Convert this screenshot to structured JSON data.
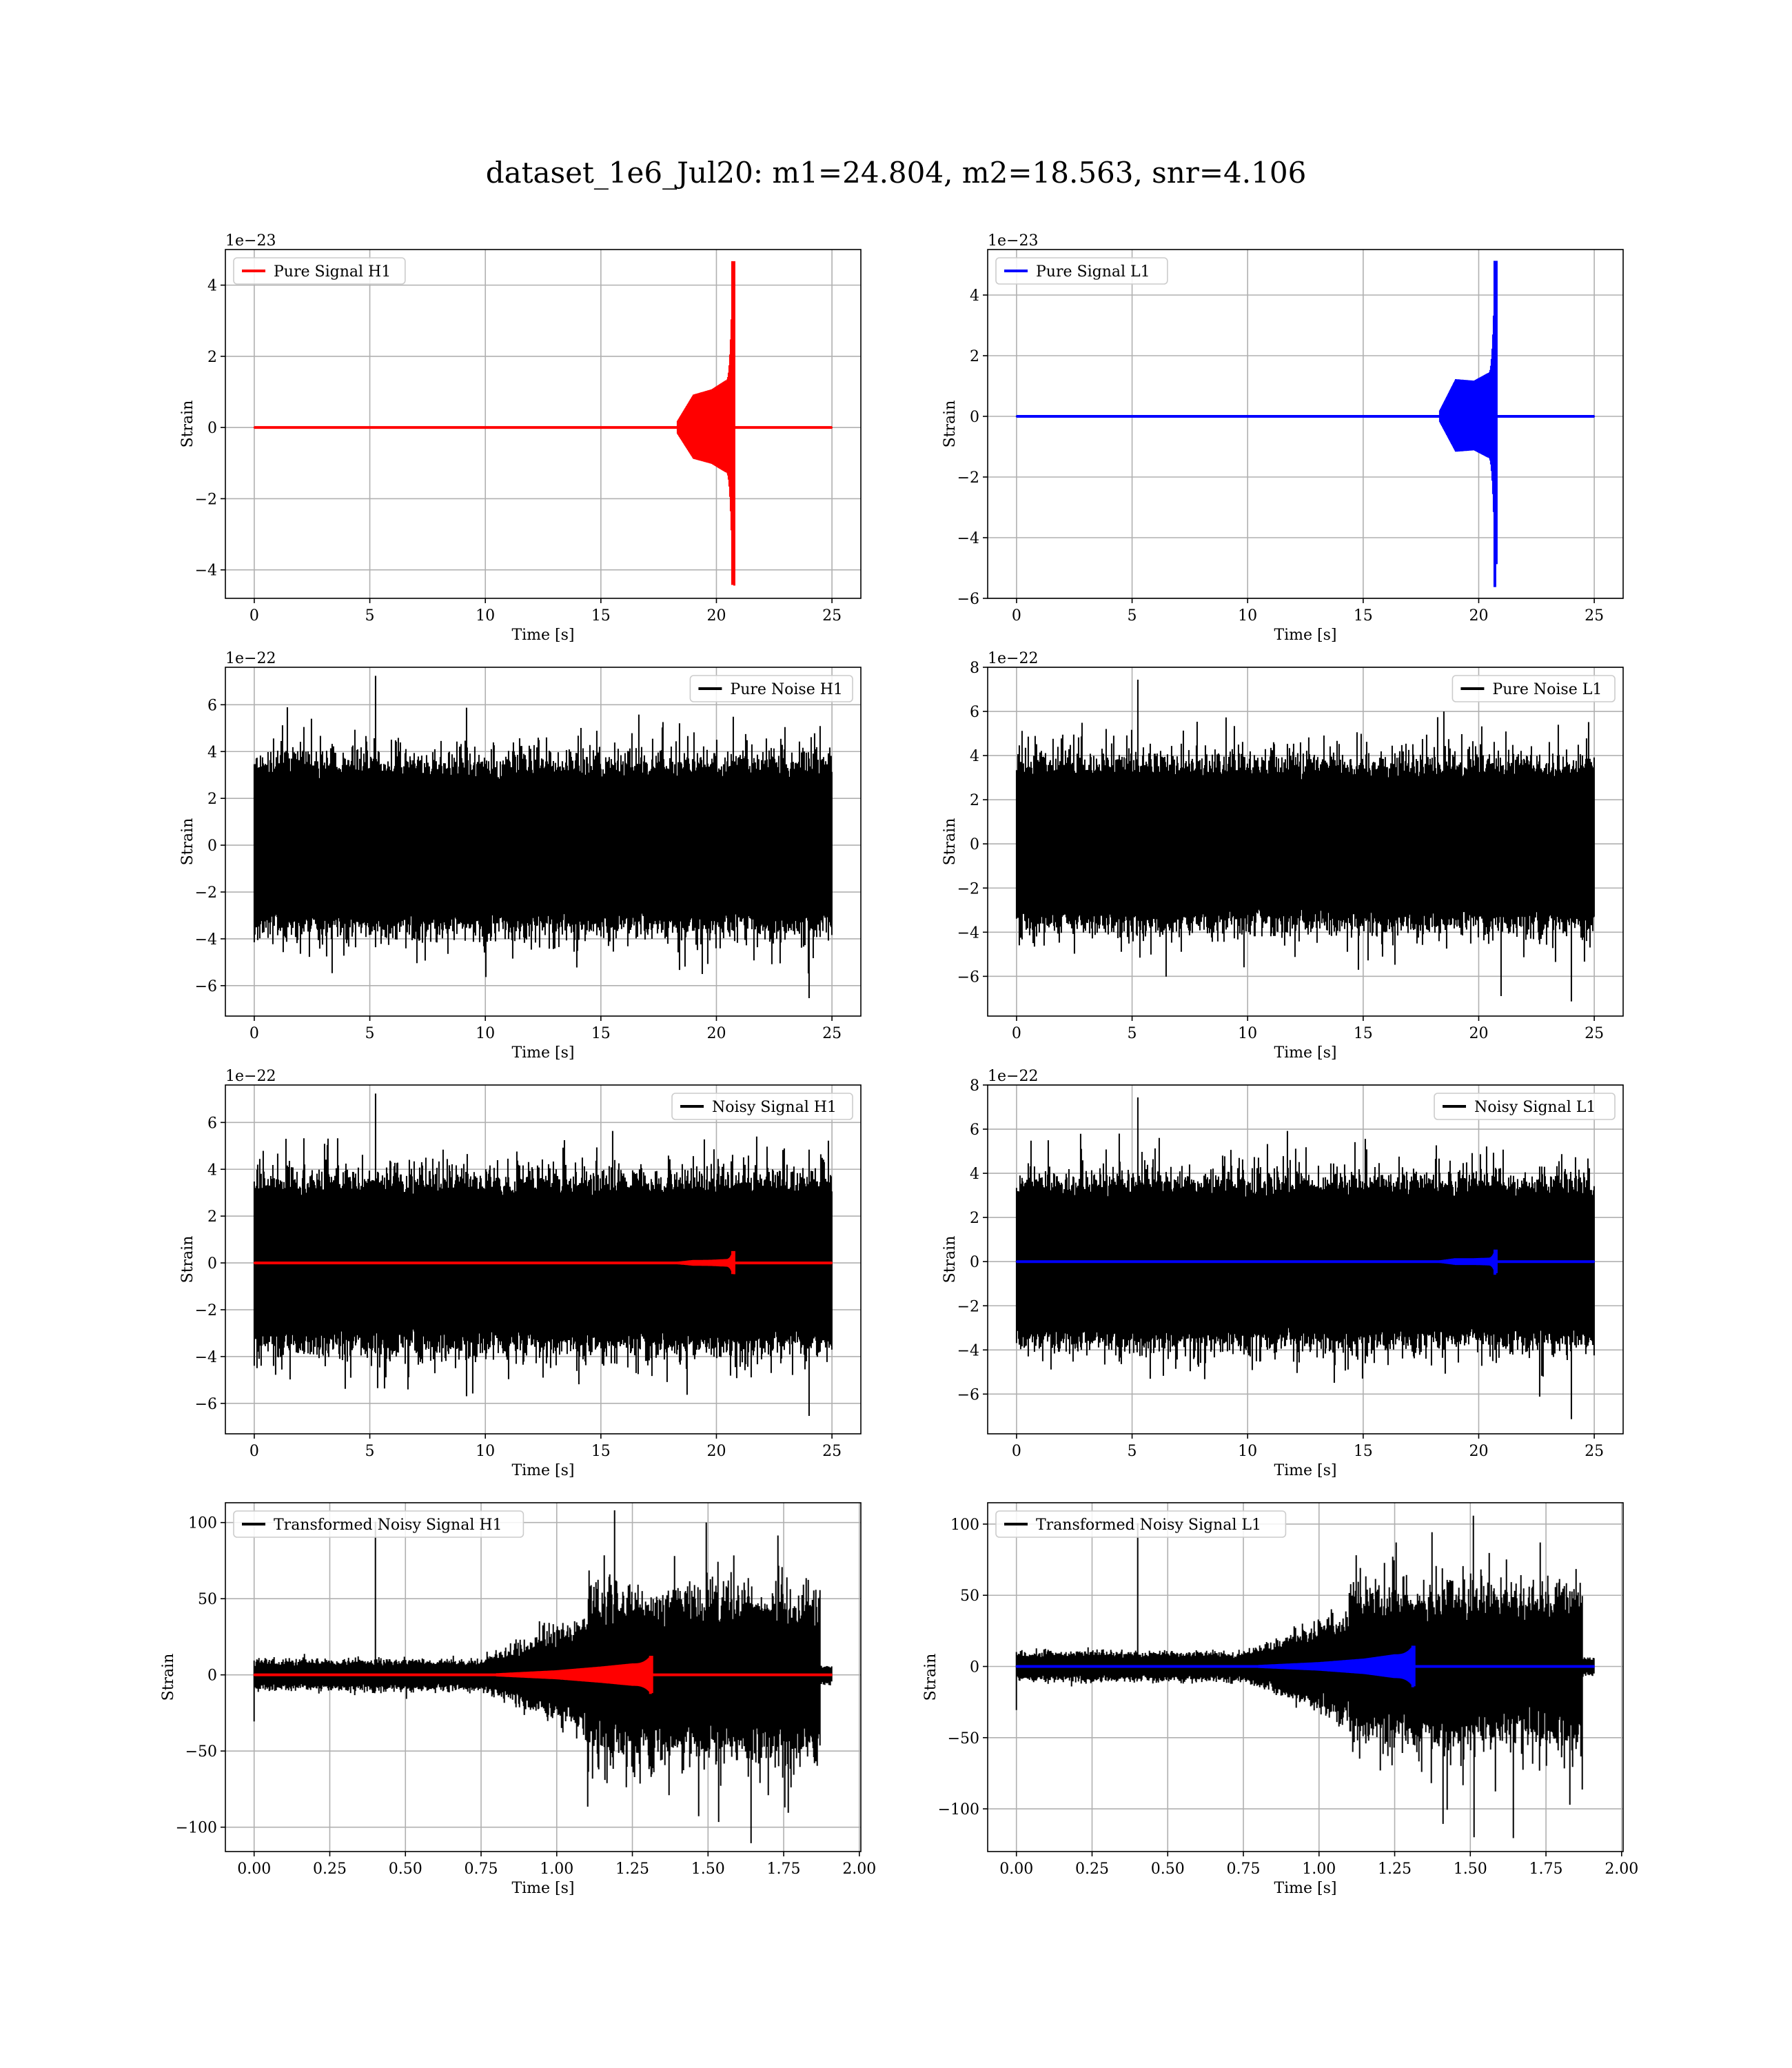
{
  "title": "dataset_1e6_Jul20: m1=24.804, m2=18.563, snr=4.106",
  "colors": {
    "h1_signal": "#ff0000",
    "l1_signal": "#0000ff",
    "noise": "#000000",
    "grid": "#b0b0b0"
  },
  "chart_data": [
    {
      "id": "pure-signal-h1",
      "type": "line",
      "legend": [
        {
          "name": "Pure Signal H1",
          "color": "#ff0000"
        }
      ],
      "legend_loc": "upper left",
      "xlabel": "Time [s]",
      "ylabel": "Strain",
      "offset_text": "1e−23",
      "xlim": [
        -1.25,
        26.25
      ],
      "ylim": [
        -4.8,
        5.0
      ],
      "xticks": [
        0,
        5,
        10,
        15,
        20,
        25
      ],
      "xtick_labels": [
        "0",
        "5",
        "10",
        "15",
        "20",
        "25"
      ],
      "yticks": [
        -4,
        -2,
        0,
        2,
        4
      ],
      "ytick_labels": [
        "−4",
        "−2",
        "0",
        "2",
        "4"
      ],
      "series": [
        {
          "name": "Pure Signal H1",
          "color": "#ff0000",
          "kind": "chirp",
          "t_start": 0,
          "t_end": 25,
          "t_onset": 18.3,
          "t_merger": 20.7,
          "envelope": [
            [
              18.3,
              0.15
            ],
            [
              19.0,
              0.9
            ],
            [
              19.8,
              1.05
            ],
            [
              20.4,
              1.3
            ],
            [
              20.7,
              4.65
            ]
          ],
          "neg_peak": -4.4
        }
      ]
    },
    {
      "id": "pure-signal-l1",
      "type": "line",
      "legend": [
        {
          "name": "Pure Signal L1",
          "color": "#0000ff"
        }
      ],
      "legend_loc": "upper left",
      "xlabel": "Time [s]",
      "ylabel": "Strain",
      "offset_text": "1e−23",
      "xlim": [
        -1.25,
        26.25
      ],
      "ylim": [
        -6.0,
        5.5
      ],
      "xticks": [
        0,
        5,
        10,
        15,
        20,
        25
      ],
      "xtick_labels": [
        "0",
        "5",
        "10",
        "15",
        "20",
        "25"
      ],
      "yticks": [
        -6,
        -4,
        -2,
        0,
        2,
        4
      ],
      "ytick_labels": [
        "−6",
        "−4",
        "−2",
        "0",
        "2",
        "4"
      ],
      "series": [
        {
          "name": "Pure Signal L1",
          "color": "#0000ff",
          "kind": "chirp",
          "t_start": 0,
          "t_end": 25,
          "t_onset": 18.3,
          "t_merger": 20.7,
          "envelope": [
            [
              18.3,
              0.15
            ],
            [
              19.0,
              1.2
            ],
            [
              19.8,
              1.15
            ],
            [
              20.4,
              1.4
            ],
            [
              20.7,
              5.1
            ]
          ],
          "neg_peak": -5.6
        }
      ]
    },
    {
      "id": "pure-noise-h1",
      "type": "line",
      "legend": [
        {
          "name": "Pure Noise H1",
          "color": "#000000"
        }
      ],
      "legend_loc": "upper right",
      "xlabel": "Time [s]",
      "ylabel": "Strain",
      "offset_text": "1e−22",
      "xlim": [
        -1.25,
        26.25
      ],
      "ylim": [
        -7.3,
        7.6
      ],
      "xticks": [
        0,
        5,
        10,
        15,
        20,
        25
      ],
      "xtick_labels": [
        "0",
        "5",
        "10",
        "15",
        "20",
        "25"
      ],
      "yticks": [
        -6,
        -4,
        -2,
        0,
        2,
        4,
        6
      ],
      "ytick_labels": [
        "−6",
        "−4",
        "−2",
        "0",
        "2",
        "4",
        "6"
      ],
      "series": [
        {
          "name": "Pure Noise H1",
          "color": "#000000",
          "kind": "noise",
          "t_start": 0,
          "t_end": 25,
          "core_amp": 3.2,
          "max_peak": 7.2,
          "min_peak": -6.5
        }
      ]
    },
    {
      "id": "pure-noise-l1",
      "type": "line",
      "legend": [
        {
          "name": "Pure Noise L1",
          "color": "#000000"
        }
      ],
      "legend_loc": "upper right",
      "xlabel": "Time [s]",
      "ylabel": "Strain",
      "offset_text": "1e−22",
      "xlim": [
        -1.25,
        26.25
      ],
      "ylim": [
        -7.8,
        8.0
      ],
      "xticks": [
        0,
        5,
        10,
        15,
        20,
        25
      ],
      "xtick_labels": [
        "0",
        "5",
        "10",
        "15",
        "20",
        "25"
      ],
      "yticks": [
        -6,
        -4,
        -2,
        0,
        2,
        4,
        6,
        8
      ],
      "ytick_labels": [
        "−6",
        "−4",
        "−2",
        "0",
        "2",
        "4",
        "6",
        "8"
      ],
      "series": [
        {
          "name": "Pure Noise L1",
          "color": "#000000",
          "kind": "noise",
          "t_start": 0,
          "t_end": 25,
          "core_amp": 3.3,
          "max_peak": 7.4,
          "min_peak": -7.1
        }
      ]
    },
    {
      "id": "noisy-signal-h1",
      "type": "line",
      "legend": [
        {
          "name": "Noisy Signal H1",
          "color": "#000000"
        }
      ],
      "legend_loc": "upper right",
      "xlabel": "Time [s]",
      "ylabel": "Strain",
      "offset_text": "1e−22",
      "xlim": [
        -1.25,
        26.25
      ],
      "ylim": [
        -7.3,
        7.6
      ],
      "xticks": [
        0,
        5,
        10,
        15,
        20,
        25
      ],
      "xtick_labels": [
        "0",
        "5",
        "10",
        "15",
        "20",
        "25"
      ],
      "yticks": [
        -6,
        -4,
        -2,
        0,
        2,
        4,
        6
      ],
      "ytick_labels": [
        "−6",
        "−4",
        "−2",
        "0",
        "2",
        "4",
        "6"
      ],
      "series": [
        {
          "name": "Noisy Signal H1",
          "color": "#000000",
          "kind": "noise",
          "t_start": 0,
          "t_end": 25,
          "core_amp": 3.2,
          "max_peak": 7.2,
          "min_peak": -6.5
        },
        {
          "name": "Pure Signal H1",
          "color": "#ff0000",
          "kind": "chirp",
          "t_start": 0,
          "t_end": 25,
          "t_onset": 18.3,
          "t_merger": 20.7,
          "envelope": [
            [
              18.3,
              0.02
            ],
            [
              19.0,
              0.09
            ],
            [
              19.8,
              0.1
            ],
            [
              20.4,
              0.13
            ],
            [
              20.7,
              0.47
            ]
          ],
          "neg_peak": -0.44
        }
      ]
    },
    {
      "id": "noisy-signal-l1",
      "type": "line",
      "legend": [
        {
          "name": "Noisy Signal L1",
          "color": "#000000"
        }
      ],
      "legend_loc": "upper right",
      "xlabel": "Time [s]",
      "ylabel": "Strain",
      "offset_text": "1e−22",
      "xlim": [
        -1.25,
        26.25
      ],
      "ylim": [
        -7.8,
        8.0
      ],
      "xticks": [
        0,
        5,
        10,
        15,
        20,
        25
      ],
      "xtick_labels": [
        "0",
        "5",
        "10",
        "15",
        "20",
        "25"
      ],
      "yticks": [
        -6,
        -4,
        -2,
        0,
        2,
        4,
        6,
        8
      ],
      "ytick_labels": [
        "−6",
        "−4",
        "−2",
        "0",
        "2",
        "4",
        "6",
        "8"
      ],
      "series": [
        {
          "name": "Noisy Signal L1",
          "color": "#000000",
          "kind": "noise",
          "t_start": 0,
          "t_end": 25,
          "core_amp": 3.3,
          "max_peak": 7.4,
          "min_peak": -7.1
        },
        {
          "name": "Pure Signal L1",
          "color": "#0000ff",
          "kind": "chirp",
          "t_start": 0,
          "t_end": 25,
          "t_onset": 18.3,
          "t_merger": 20.7,
          "envelope": [
            [
              18.3,
              0.02
            ],
            [
              19.0,
              0.12
            ],
            [
              19.8,
              0.12
            ],
            [
              20.4,
              0.14
            ],
            [
              20.7,
              0.51
            ]
          ],
          "neg_peak": -0.56
        }
      ]
    },
    {
      "id": "transformed-noisy-signal-h1",
      "type": "line",
      "legend": [
        {
          "name": "Transformed Noisy Signal H1",
          "color": "#000000"
        }
      ],
      "legend_loc": "upper left",
      "xlabel": "Time [s]",
      "ylabel": "Strain",
      "offset_text": "",
      "xlim": [
        -0.095,
        2.005
      ],
      "ylim": [
        -116,
        113
      ],
      "xticks": [
        0,
        0.25,
        0.5,
        0.75,
        1.0,
        1.25,
        1.5,
        1.75,
        2.0
      ],
      "xtick_labels": [
        "0.00",
        "0.25",
        "0.50",
        "0.75",
        "1.00",
        "1.25",
        "1.50",
        "1.75",
        "2.00"
      ],
      "yticks": [
        -100,
        -50,
        0,
        50,
        100
      ],
      "ytick_labels": [
        "−100",
        "−50",
        "0",
        "50",
        "100"
      ],
      "series": [
        {
          "name": "Transformed Noisy Signal H1",
          "color": "#000000",
          "kind": "transformed",
          "t_start": 0,
          "t_end": 1.91,
          "early_amp": 8,
          "ramp_start": 0.75,
          "ramp_end": 1.1,
          "late_amp": 45,
          "t_cut": 1.87,
          "max_peak": 100,
          "min_peak": -110
        },
        {
          "name": "Transformed Signal H1",
          "color": "#ff0000",
          "kind": "chirp",
          "t_start": 0,
          "t_end": 1.91,
          "t_onset": 0.8,
          "t_merger": 1.31,
          "envelope": [
            [
              0.8,
              0.5
            ],
            [
              1.0,
              2.5
            ],
            [
              1.15,
              5
            ],
            [
              1.25,
              7
            ],
            [
              1.31,
              12
            ]
          ],
          "neg_peak": -12
        }
      ]
    },
    {
      "id": "transformed-noisy-signal-l1",
      "type": "line",
      "legend": [
        {
          "name": "Transformed Noisy Signal L1",
          "color": "#000000"
        }
      ],
      "legend_loc": "upper left",
      "xlabel": "Time [s]",
      "ylabel": "Strain",
      "offset_text": "",
      "xlim": [
        -0.095,
        2.005
      ],
      "ylim": [
        -130,
        115
      ],
      "xticks": [
        0,
        0.25,
        0.5,
        0.75,
        1.0,
        1.25,
        1.5,
        1.75,
        2.0
      ],
      "xtick_labels": [
        "0.00",
        "0.25",
        "0.50",
        "0.75",
        "1.00",
        "1.25",
        "1.50",
        "1.75",
        "2.00"
      ],
      "yticks": [
        -100,
        -50,
        0,
        50,
        100
      ],
      "ytick_labels": [
        "−100",
        "−50",
        "0",
        "50",
        "100"
      ],
      "series": [
        {
          "name": "Transformed Noisy Signal L1",
          "color": "#000000",
          "kind": "transformed",
          "t_start": 0,
          "t_end": 1.91,
          "early_amp": 8,
          "ramp_start": 0.75,
          "ramp_end": 1.1,
          "late_amp": 45,
          "t_cut": 1.87,
          "max_peak": 100,
          "min_peak": -120
        },
        {
          "name": "Transformed Signal L1",
          "color": "#0000ff",
          "kind": "chirp",
          "t_start": 0,
          "t_end": 1.91,
          "t_onset": 0.8,
          "t_merger": 1.31,
          "envelope": [
            [
              0.8,
              0.5
            ],
            [
              1.0,
              2.5
            ],
            [
              1.15,
              5
            ],
            [
              1.25,
              8
            ],
            [
              1.31,
              14
            ]
          ],
          "neg_peak": -14
        }
      ]
    }
  ]
}
